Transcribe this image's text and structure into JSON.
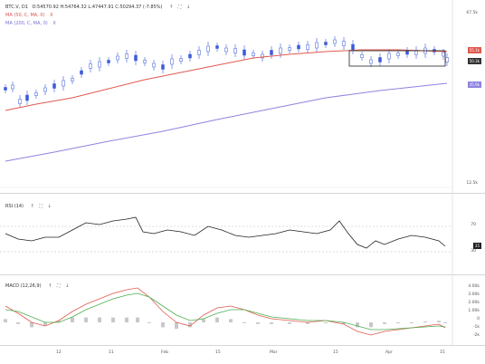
{
  "price_legend": {
    "symbol": "BTC.V, D1",
    "ohlc": "O:54570.92 H:54764.32 L:47447.91 C:50294.37 (-7.85%)",
    "ma50": "MA (50, C, MA, 0)",
    "ma200": "MA (200, C, MA, 0)",
    "close_x": "X"
  },
  "rsi_legend": {
    "label": "RSI (14)"
  },
  "macd_legend": {
    "label": "MACD (12,26,9)"
  },
  "price_axis": {
    "top": "67.5k",
    "bottom": "12.5k"
  },
  "badges": {
    "ma50": "55.1k",
    "close": "50.3k",
    "ma200": "35.9k"
  },
  "rsi_axis": {
    "upper": "70",
    "lower": "30"
  },
  "rsi_value": "35",
  "macd_axis": [
    "4.00k",
    "3.00k",
    "2.00k",
    "1.00k",
    "0",
    "-1k",
    "-2k"
  ],
  "x_axis": [
    "12",
    "11",
    "Feb",
    "15",
    "Mar",
    "15",
    "Apr",
    "15",
    "May",
    "15"
  ],
  "icons": [
    "arrow-up-icon",
    "arrow-down-icon",
    "fullscreen-icon"
  ],
  "colors": {
    "candle": "#3b5bd8",
    "ma50": "#e0594f",
    "ma200": "#8d84e0",
    "macd": "#e0594f",
    "signal": "#4caf50",
    "hist": "#c8c8c8"
  }
}
